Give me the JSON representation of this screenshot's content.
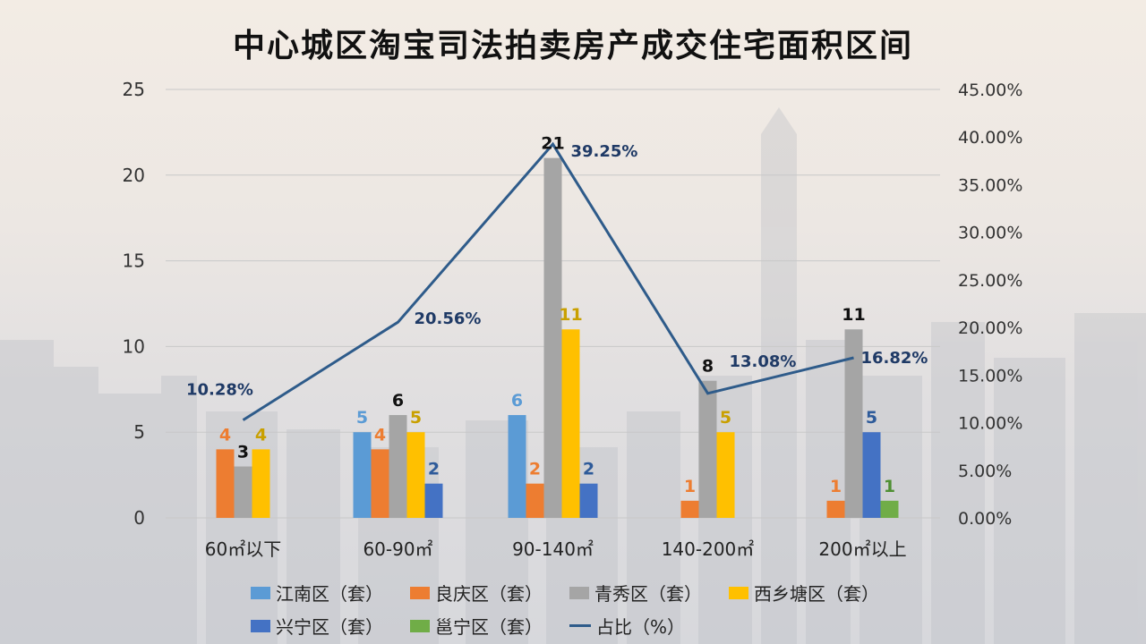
{
  "title": "中心城区淘宝司法拍卖房产成交住宅面积区间",
  "chart_data": {
    "type": "bar",
    "title": "中心城区淘宝司法拍卖房产成交住宅面积区间",
    "categories": [
      "60㎡以下",
      "60-90㎡",
      "90-140㎡",
      "140-200㎡",
      "200㎡以上"
    ],
    "series": [
      {
        "name": "江南区（套）",
        "color": "#5b9bd5",
        "values": [
          null,
          5,
          6,
          null,
          null
        ],
        "labels": [
          "",
          "5",
          "6",
          "",
          ""
        ]
      },
      {
        "name": "良庆区（套）",
        "color": "#ed7d31",
        "values": [
          4,
          4,
          2,
          1,
          1
        ],
        "labels": [
          "4",
          "4",
          "2",
          "1",
          "1"
        ]
      },
      {
        "name": "青秀区（套）",
        "color": "#a5a5a5",
        "values": [
          3,
          6,
          21,
          8,
          11
        ],
        "labels": [
          "3",
          "6",
          "21",
          "8",
          "11"
        ]
      },
      {
        "name": "西乡塘区（套）",
        "color": "#ffc000",
        "values": [
          4,
          5,
          11,
          5,
          null
        ],
        "labels": [
          "4",
          "5",
          "11",
          "5",
          ""
        ]
      },
      {
        "name": "兴宁区（套）",
        "color": "#4472c4",
        "values": [
          null,
          2,
          2,
          null,
          5
        ],
        "labels": [
          "",
          "2",
          "2",
          "",
          "5"
        ]
      },
      {
        "name": "邕宁区（套）",
        "color": "#70ad47",
        "values": [
          null,
          null,
          null,
          null,
          1
        ],
        "labels": [
          "",
          "",
          "",
          "",
          "1"
        ]
      }
    ],
    "line_series": {
      "name": "占比（%）",
      "color": "#2e5b8a",
      "values": [
        10.28,
        20.56,
        39.25,
        13.08,
        16.82
      ],
      "labels": [
        "10.28%",
        "20.56%",
        "39.25%",
        "13.08%",
        "16.82%"
      ]
    },
    "y_left": {
      "min": 0,
      "max": 25,
      "ticks": [
        "0",
        "5",
        "10",
        "15",
        "20",
        "25"
      ]
    },
    "y_right": {
      "min": 0,
      "max": 45,
      "ticks": [
        "0.00%",
        "5.00%",
        "10.00%",
        "15.00%",
        "20.00%",
        "25.00%",
        "30.00%",
        "35.00%",
        "40.00%",
        "45.00%"
      ]
    },
    "grid": true,
    "legend_position": "bottom"
  }
}
